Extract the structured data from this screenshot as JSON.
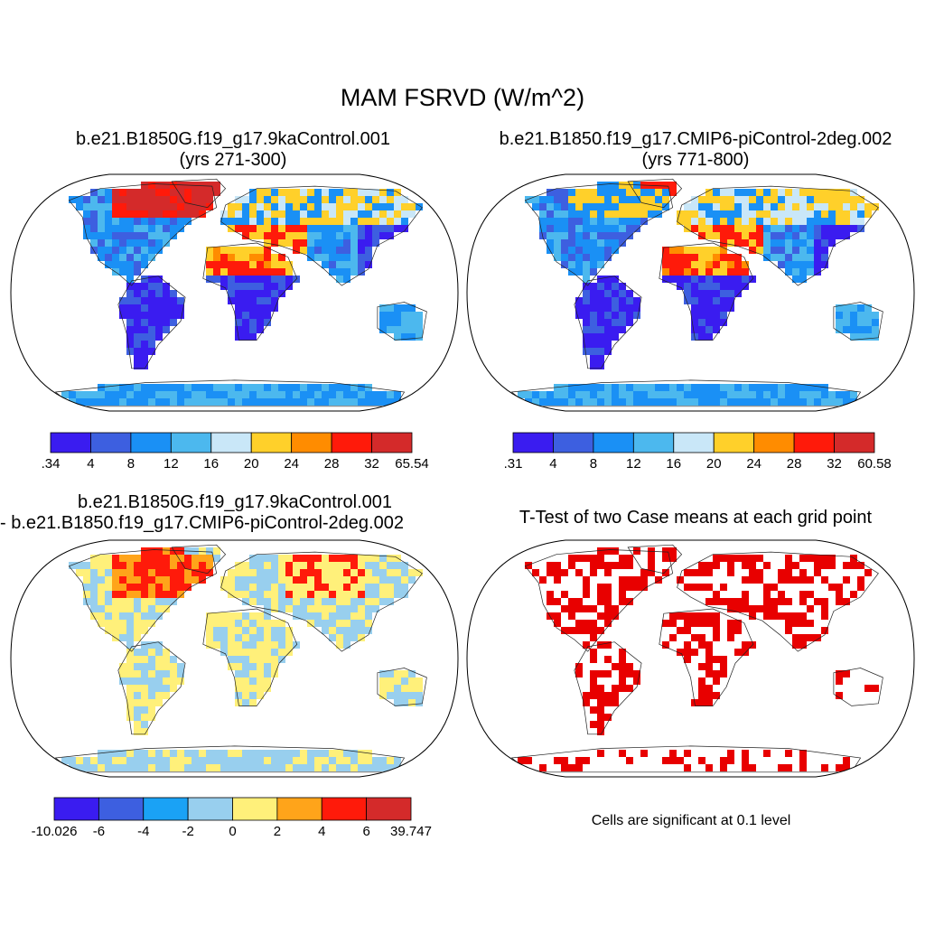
{
  "main_title": "MAM FSRVD (W/m^2)",
  "panels": [
    {
      "id": "case1",
      "title_line1": "b.e21.B1850G.f19_g17.9kaControl.001",
      "title_line2": "(yrs 271-300)",
      "colorbar": {
        "colors": [
          "#3a1cf0",
          "#3d5fe0",
          "#1a90f5",
          "#4cb8ee",
          "#c9e7f8",
          "#ffd02a",
          "#ff8c00",
          "#ff1a0a",
          "#d42a2a"
        ],
        "labels": [
          ".34",
          "4",
          "8",
          "12",
          "16",
          "20",
          "24",
          "28",
          "32",
          "65.54"
        ]
      }
    },
    {
      "id": "case2",
      "title_line1": "b.e21.B1850.f19_g17.CMIP6-piControl-2deg.002",
      "title_line2": "(yrs 771-800)",
      "colorbar": {
        "colors": [
          "#3a1cf0",
          "#3d5fe0",
          "#1a90f5",
          "#4cb8ee",
          "#c9e7f8",
          "#ffd02a",
          "#ff8c00",
          "#ff1a0a",
          "#d42a2a"
        ],
        "labels": [
          ".31",
          "4",
          "8",
          "12",
          "16",
          "20",
          "24",
          "28",
          "32",
          "60.58"
        ]
      }
    },
    {
      "id": "difference",
      "title_line1": "b.e21.B1850G.f19_g17.9kaControl.001",
      "title_line2": "- b.e21.B1850.f19_g17.CMIP6-piControl-2deg.002",
      "colorbar": {
        "colors": [
          "#3a1cf0",
          "#3d5fe0",
          "#1aa2f5",
          "#98cfee",
          "#fff07a",
          "#ffa41a",
          "#ff1a0a",
          "#d42a2a"
        ],
        "labels": [
          "-10.026",
          "-6",
          "-4",
          "-2",
          "0",
          "2",
          "4",
          "6",
          "39.747"
        ]
      }
    },
    {
      "id": "ttest",
      "title_line1": "T-Test of two Case means at each grid point",
      "note": "Cells are significant at 0.1 level",
      "significant_color": "#e80000"
    }
  ]
}
